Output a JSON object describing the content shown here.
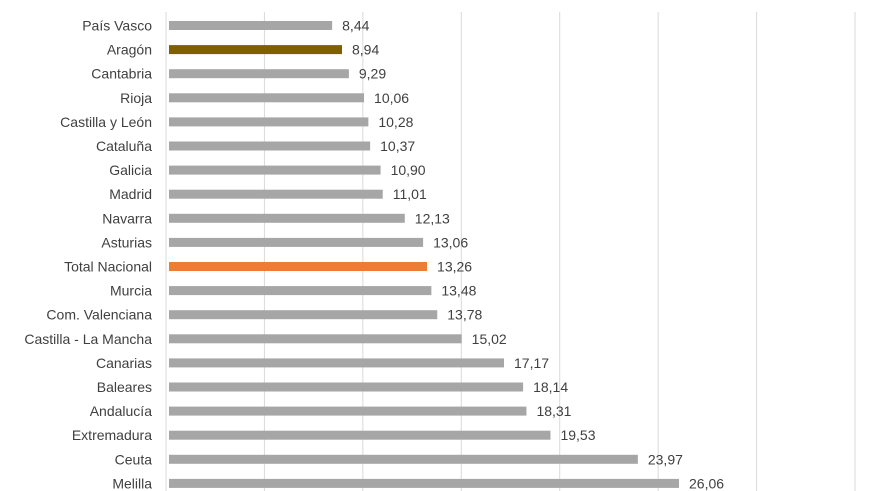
{
  "chart_data": {
    "type": "bar",
    "orientation": "horizontal",
    "categories": [
      "País Vasco",
      "Aragón",
      "Cantabria",
      "Rioja",
      "Castilla y León",
      "Cataluña",
      "Galicia",
      "Madrid",
      "Navarra",
      "Asturias",
      "Total Nacional",
      "Murcia",
      "Com. Valenciana",
      "Castilla - La Mancha",
      "Canarias",
      "Baleares",
      "Andalucía",
      "Extremadura",
      "Ceuta",
      "Melilla"
    ],
    "values": [
      8.44,
      8.94,
      9.29,
      10.06,
      10.28,
      10.37,
      10.9,
      11.01,
      12.13,
      13.06,
      13.26,
      13.48,
      13.78,
      15.02,
      17.17,
      18.14,
      18.31,
      19.53,
      23.97,
      26.06
    ],
    "value_labels": [
      "8,44",
      "8,94",
      "9,29",
      "10,06",
      "10,28",
      "10,37",
      "10,90",
      "11,01",
      "12,13",
      "13,06",
      "13,26",
      "13,48",
      "13,78",
      "15,02",
      "17,17",
      "18,14",
      "18,31",
      "19,53",
      "23,97",
      "26,06"
    ],
    "xlim": [
      0,
      35
    ],
    "grid": true,
    "colors": {
      "default": "#a6a6a6",
      "highlight_aragon": "#7f6000",
      "highlight_total": "#ed7d31",
      "grid": "#d9d9d9",
      "text": "#404040"
    },
    "bar_colors": [
      "default",
      "highlight_aragon",
      "default",
      "default",
      "default",
      "default",
      "default",
      "default",
      "default",
      "default",
      "highlight_total",
      "default",
      "default",
      "default",
      "default",
      "default",
      "default",
      "default",
      "default",
      "default"
    ]
  }
}
